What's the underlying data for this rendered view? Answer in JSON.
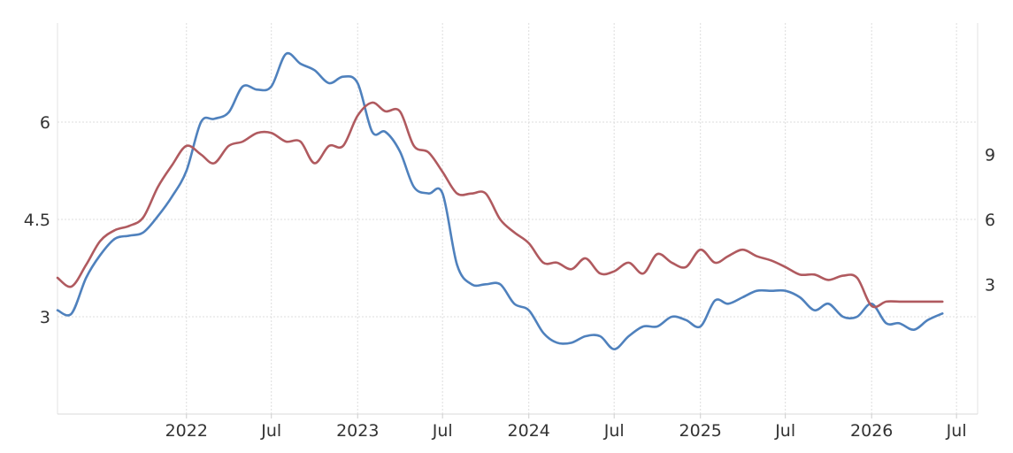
{
  "chart_data": {
    "type": "line",
    "title": "",
    "xlabel": "",
    "ylabel_left": "",
    "ylabel_right": "",
    "grid": true,
    "legend": "none",
    "x_range": [
      "2021-04-01",
      "2026-08-15"
    ],
    "x_tick_labels": [
      {
        "date": "2022-01-01",
        "label": "2022"
      },
      {
        "date": "2022-07-01",
        "label": "Jul"
      },
      {
        "date": "2023-01-01",
        "label": "2023"
      },
      {
        "date": "2023-07-01",
        "label": "Jul"
      },
      {
        "date": "2024-01-01",
        "label": "2024"
      },
      {
        "date": "2024-07-01",
        "label": "Jul"
      },
      {
        "date": "2025-01-01",
        "label": "2025"
      },
      {
        "date": "2025-07-01",
        "label": "Jul"
      },
      {
        "date": "2026-01-01",
        "label": "2026"
      },
      {
        "date": "2026-07-01",
        "label": "Jul"
      }
    ],
    "left_axis": {
      "ylim": [
        1.5,
        7.5
      ],
      "ticks": [
        3,
        4.5,
        6
      ],
      "tick_labels": [
        "3",
        "4.5",
        "6"
      ]
    },
    "right_axis": {
      "ylim": [
        -3,
        15
      ],
      "ticks": [
        3,
        6,
        9
      ],
      "tick_labels": [
        "3",
        "6",
        "9"
      ]
    },
    "series": [
      {
        "axis": "left",
        "color": "#4f81bd",
        "points": [
          [
            "2021-04-01",
            3.1
          ],
          [
            "2021-05-01",
            3.05
          ],
          [
            "2021-06-01",
            3.6
          ],
          [
            "2021-07-01",
            3.95
          ],
          [
            "2021-08-01",
            4.2
          ],
          [
            "2021-09-01",
            4.25
          ],
          [
            "2021-10-01",
            4.3
          ],
          [
            "2021-11-01",
            4.55
          ],
          [
            "2021-12-01",
            4.85
          ],
          [
            "2022-01-01",
            5.25
          ],
          [
            "2022-02-01",
            6.0
          ],
          [
            "2022-03-01",
            6.05
          ],
          [
            "2022-04-01",
            6.15
          ],
          [
            "2022-05-01",
            6.55
          ],
          [
            "2022-06-01",
            6.5
          ],
          [
            "2022-07-01",
            6.55
          ],
          [
            "2022-08-01",
            7.05
          ],
          [
            "2022-09-01",
            6.9
          ],
          [
            "2022-10-01",
            6.8
          ],
          [
            "2022-11-01",
            6.6
          ],
          [
            "2022-12-01",
            6.7
          ],
          [
            "2023-01-01",
            6.6
          ],
          [
            "2023-02-01",
            5.85
          ],
          [
            "2023-03-01",
            5.85
          ],
          [
            "2023-04-01",
            5.55
          ],
          [
            "2023-05-01",
            5.0
          ],
          [
            "2023-06-01",
            4.9
          ],
          [
            "2023-07-01",
            4.9
          ],
          [
            "2023-08-01",
            3.8
          ],
          [
            "2023-09-01",
            3.5
          ],
          [
            "2023-10-01",
            3.5
          ],
          [
            "2023-11-01",
            3.5
          ],
          [
            "2023-12-01",
            3.2
          ],
          [
            "2024-01-01",
            3.1
          ],
          [
            "2024-02-01",
            2.75
          ],
          [
            "2024-03-01",
            2.6
          ],
          [
            "2024-04-01",
            2.6
          ],
          [
            "2024-05-01",
            2.7
          ],
          [
            "2024-06-01",
            2.7
          ],
          [
            "2024-07-01",
            2.5
          ],
          [
            "2024-08-01",
            2.7
          ],
          [
            "2024-09-01",
            2.85
          ],
          [
            "2024-10-01",
            2.85
          ],
          [
            "2024-11-01",
            3.0
          ],
          [
            "2024-12-01",
            2.95
          ],
          [
            "2025-01-01",
            2.85
          ],
          [
            "2025-02-01",
            3.25
          ],
          [
            "2025-03-01",
            3.2
          ],
          [
            "2025-04-01",
            3.3
          ],
          [
            "2025-05-01",
            3.4
          ],
          [
            "2025-06-01",
            3.4
          ],
          [
            "2025-07-01",
            3.4
          ],
          [
            "2025-08-01",
            3.3
          ],
          [
            "2025-09-01",
            3.1
          ],
          [
            "2025-10-01",
            3.2
          ],
          [
            "2025-11-01",
            3.0
          ],
          [
            "2025-12-01",
            3.0
          ],
          [
            "2026-01-01",
            3.2
          ],
          [
            "2026-02-01",
            2.9
          ],
          [
            "2026-03-01",
            2.9
          ],
          [
            "2026-04-01",
            2.8
          ],
          [
            "2026-05-01",
            2.95
          ],
          [
            "2026-06-01",
            3.05
          ]
        ]
      },
      {
        "axis": "right",
        "color": "#b05a5f",
        "points": [
          [
            "2021-04-01",
            3.3
          ],
          [
            "2021-05-01",
            2.9
          ],
          [
            "2021-06-01",
            3.9
          ],
          [
            "2021-07-01",
            5.0
          ],
          [
            "2021-08-01",
            5.5
          ],
          [
            "2021-09-01",
            5.7
          ],
          [
            "2021-10-01",
            6.1
          ],
          [
            "2021-11-01",
            7.5
          ],
          [
            "2021-12-01",
            8.5
          ],
          [
            "2022-01-01",
            9.4
          ],
          [
            "2022-02-01",
            9.0
          ],
          [
            "2022-03-01",
            8.6
          ],
          [
            "2022-04-01",
            9.4
          ],
          [
            "2022-05-01",
            9.6
          ],
          [
            "2022-06-01",
            10.0
          ],
          [
            "2022-07-01",
            10.0
          ],
          [
            "2022-08-01",
            9.6
          ],
          [
            "2022-09-01",
            9.6
          ],
          [
            "2022-10-01",
            8.6
          ],
          [
            "2022-11-01",
            9.4
          ],
          [
            "2022-12-01",
            9.4
          ],
          [
            "2023-01-01",
            10.8
          ],
          [
            "2023-02-01",
            11.4
          ],
          [
            "2023-03-01",
            11.0
          ],
          [
            "2023-04-01",
            11.0
          ],
          [
            "2023-05-01",
            9.4
          ],
          [
            "2023-06-01",
            9.1
          ],
          [
            "2023-07-01",
            8.2
          ],
          [
            "2023-08-01",
            7.2
          ],
          [
            "2023-09-01",
            7.2
          ],
          [
            "2023-10-01",
            7.2
          ],
          [
            "2023-11-01",
            6.0
          ],
          [
            "2023-12-01",
            5.4
          ],
          [
            "2024-01-01",
            4.9
          ],
          [
            "2024-02-01",
            4.0
          ],
          [
            "2024-03-01",
            4.0
          ],
          [
            "2024-04-01",
            3.7
          ],
          [
            "2024-05-01",
            4.2
          ],
          [
            "2024-06-01",
            3.5
          ],
          [
            "2024-07-01",
            3.6
          ],
          [
            "2024-08-01",
            4.0
          ],
          [
            "2024-09-01",
            3.5
          ],
          [
            "2024-10-01",
            4.4
          ],
          [
            "2024-11-01",
            4.0
          ],
          [
            "2024-12-01",
            3.8
          ],
          [
            "2025-01-01",
            4.6
          ],
          [
            "2025-02-01",
            4.0
          ],
          [
            "2025-03-01",
            4.3
          ],
          [
            "2025-04-01",
            4.6
          ],
          [
            "2025-05-01",
            4.3
          ],
          [
            "2025-06-01",
            4.1
          ],
          [
            "2025-07-01",
            3.8
          ],
          [
            "2025-08-01",
            3.45
          ],
          [
            "2025-09-01",
            3.45
          ],
          [
            "2025-10-01",
            3.2
          ],
          [
            "2025-11-01",
            3.4
          ],
          [
            "2025-12-01",
            3.3
          ],
          [
            "2026-01-01",
            2.0
          ],
          [
            "2026-02-01",
            2.2
          ],
          [
            "2026-03-01",
            2.2
          ],
          [
            "2026-04-01",
            2.2
          ],
          [
            "2026-05-01",
            2.2
          ],
          [
            "2026-06-01",
            2.2
          ]
        ]
      }
    ]
  }
}
